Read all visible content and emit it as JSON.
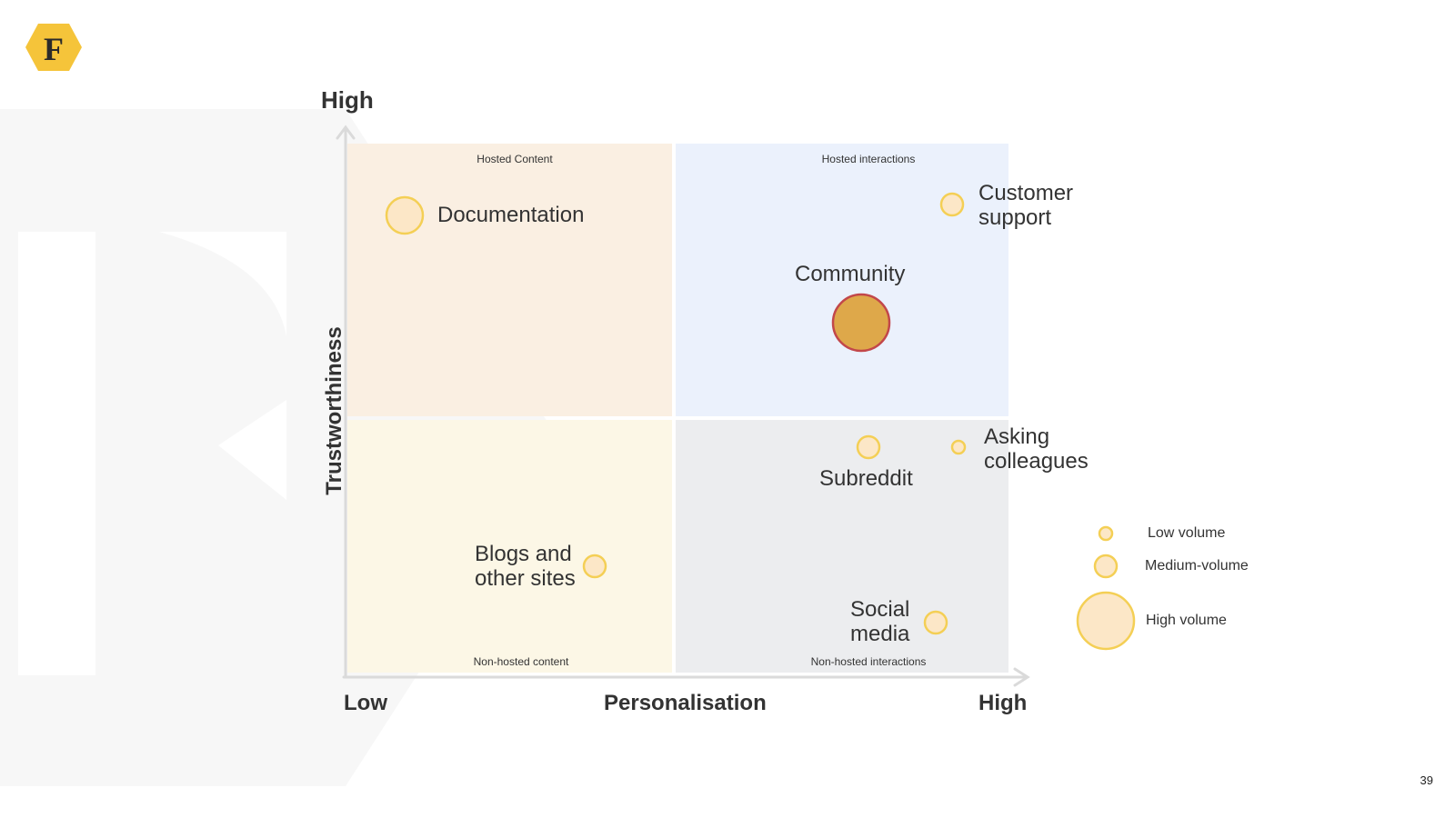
{
  "slide": {
    "page_number": "39"
  },
  "logo": {
    "letter": "F",
    "color": "#F5C43A"
  },
  "axes": {
    "y_title": "Trustworthiness",
    "y_high": "High",
    "x_title": "Personalisation",
    "x_low": "Low",
    "x_high": "High"
  },
  "quadrants": {
    "top_left": {
      "label": "Hosted Content",
      "color": "#FAEFE2"
    },
    "top_right": {
      "label": "Hosted interactions",
      "color": "#EBF1FC"
    },
    "bottom_left": {
      "label": "Non-hosted content",
      "color": "#FCF7E6"
    },
    "bottom_right": {
      "label": "Non-hosted interactions",
      "color": "#ECEDEF"
    }
  },
  "items": [
    {
      "id": "documentation",
      "label": "Documentation",
      "volume": "medium",
      "highlight": false
    },
    {
      "id": "customer-support",
      "label": "Customer support",
      "line1": "Customer",
      "line2": "support",
      "volume": "low",
      "highlight": false
    },
    {
      "id": "community",
      "label": "Community",
      "volume": "high",
      "highlight": true
    },
    {
      "id": "subreddit",
      "label": "Subreddit",
      "volume": "low",
      "highlight": false
    },
    {
      "id": "asking-colleagues",
      "label": "Asking colleagues",
      "line1": "Asking",
      "line2": "colleagues",
      "volume": "low",
      "highlight": false
    },
    {
      "id": "blogs",
      "label": "Blogs and other sites",
      "line1": "Blogs and",
      "line2": "other sites",
      "volume": "low",
      "highlight": false
    },
    {
      "id": "social-media",
      "label": "Social media",
      "line1": "Social",
      "line2": "media",
      "volume": "low",
      "highlight": false
    }
  ],
  "legend": [
    {
      "size": "low",
      "label": "Low volume"
    },
    {
      "size": "medium",
      "label": "Medium-volume"
    },
    {
      "size": "high",
      "label": "High volume"
    }
  ],
  "colors": {
    "bubble_fill": "#FCE7C7",
    "bubble_stroke": "#F4CF55",
    "highlight_fill": "#DEA84A",
    "highlight_stroke": "#C2474A",
    "axis": "#DADADA"
  }
}
